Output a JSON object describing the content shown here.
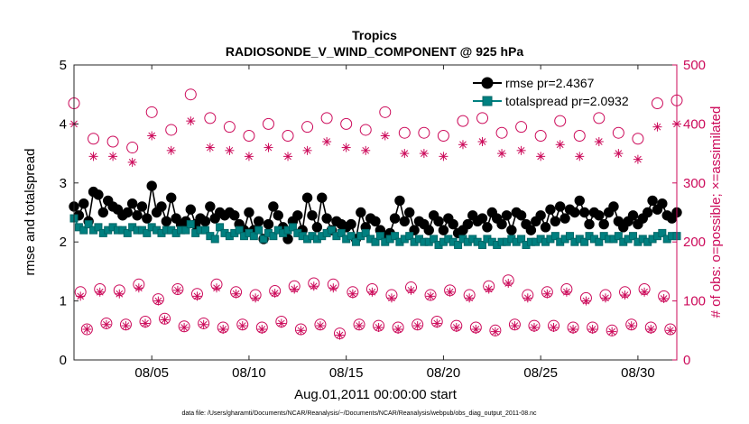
{
  "chart_data": {
    "type": "line",
    "title": "Tropics",
    "subtitle": "RADIOSONDE_V_WIND_COMPONENT @ 925 hPa",
    "xlabel": "Aug.01,2011 00:00:00 start",
    "ylabel_left": "rmse and totalspread",
    "ylabel_right": "# of obs: o=possible; ×=assimilated",
    "footer": "data file: /Users/gharamti/Documents/NCAR/Reanalysis/~/Documents/NCAR/Reanalysis/webpub/obs_diag_output_2011-08.nc",
    "x_start_day": 1,
    "x_range_days": [
      1,
      32
    ],
    "x_ticks": [
      {
        "day": 5,
        "label": "08/05"
      },
      {
        "day": 10,
        "label": "08/10"
      },
      {
        "day": 15,
        "label": "08/15"
      },
      {
        "day": 20,
        "label": "08/20"
      },
      {
        "day": 25,
        "label": "08/25"
      },
      {
        "day": 30,
        "label": "08/30"
      }
    ],
    "ylim_left": [
      0,
      5
    ],
    "yticks_left": [
      "0",
      "1",
      "2",
      "3",
      "4",
      "5"
    ],
    "ylim_right": [
      0,
      500
    ],
    "yticks_right": [
      "0",
      "100",
      "200",
      "300",
      "400",
      "500"
    ],
    "step_hours": 6,
    "series": [
      {
        "name": "rmse",
        "legend": "rmse pr=2.4367",
        "axis": "left",
        "color": "#000000",
        "marker": "circle",
        "values": [
          2.6,
          2.45,
          2.65,
          2.35,
          2.85,
          2.8,
          2.5,
          2.7,
          2.6,
          2.55,
          2.45,
          2.5,
          2.65,
          2.45,
          2.6,
          2.4,
          2.95,
          2.5,
          2.6,
          2.35,
          2.75,
          2.4,
          2.3,
          2.35,
          2.55,
          2.3,
          2.4,
          2.35,
          2.6,
          2.4,
          2.5,
          2.45,
          2.5,
          2.45,
          2.3,
          2.2,
          2.5,
          2.2,
          2.35,
          2.05,
          2.3,
          2.6,
          2.45,
          2.25,
          2.05,
          2.35,
          2.45,
          2.2,
          2.75,
          2.45,
          2.25,
          2.75,
          2.4,
          2.2,
          2.35,
          2.3,
          2.25,
          2.3,
          2.05,
          2.5,
          2.25,
          2.4,
          2.35,
          2.2,
          2.1,
          2.15,
          2.4,
          2.7,
          2.35,
          2.5,
          2.2,
          2.35,
          2.3,
          2.2,
          2.45,
          2.35,
          2.2,
          2.4,
          2.3,
          2.15,
          2.2,
          2.3,
          2.45,
          2.35,
          2.4,
          2.25,
          2.5,
          2.4,
          2.3,
          2.45,
          2.2,
          2.5,
          2.45,
          2.3,
          2.2,
          2.35,
          2.45,
          2.25,
          2.55,
          2.35,
          2.6,
          2.4,
          2.55,
          2.5,
          2.7,
          2.5,
          2.3,
          2.5,
          2.45,
          2.3,
          2.5,
          2.6,
          2.35,
          2.25,
          2.35,
          2.45,
          2.3,
          2.4,
          2.5,
          2.7,
          2.55,
          2.65,
          2.45,
          2.4,
          2.5,
          2.2,
          2.7,
          2.25,
          2.4,
          2.35,
          2.55,
          2.4,
          2.5,
          2.45,
          2.3,
          2.5,
          2.4,
          2.65,
          2.45,
          2.85,
          2.55,
          2.35,
          2.7,
          2.4,
          2.5,
          2.3,
          2.6,
          2.45,
          2.55,
          2.65,
          2.4,
          2.6,
          2.7,
          2.4,
          2.55,
          2.35,
          2.5,
          2.35,
          2.4,
          2.25,
          2.55,
          2.45,
          2.65,
          2.6,
          2.4,
          2.35,
          2.3,
          2.65,
          2.4,
          2.15,
          2.45,
          2.25,
          2.55,
          2.3,
          2.65,
          2.35,
          2.5,
          2.4,
          2.6,
          2.55,
          2.3,
          2.4,
          2.5,
          2.35,
          2.45,
          2.3,
          2.4,
          2.3,
          2.65,
          2.4,
          2.55,
          2.55,
          2.4,
          2.4,
          2.45,
          2.3,
          2.55,
          2.4,
          2.7,
          2.5,
          2.55,
          2.45,
          2.6,
          2.4,
          2.4,
          2.5,
          2.35,
          2.4,
          2.45,
          2.45,
          2.6,
          2.35,
          2.3,
          2.5,
          2.35,
          2.45,
          2.4,
          2.5,
          2.3,
          2.5,
          2.6,
          2.35,
          2.45,
          2.3,
          2.45,
          2.6,
          2.35,
          2.35,
          2.4,
          2.25,
          2.4,
          2.7,
          2.35,
          2.45,
          2.65,
          2.5,
          2.4,
          2.6,
          2.35,
          2.5,
          2.6,
          2.45,
          2.4,
          2.3,
          2.5,
          2.55,
          2.4,
          2.65,
          2.45,
          2.5,
          2.35,
          2.6,
          2.45,
          2.4,
          2.5,
          2.35,
          2.4,
          2.45,
          2.65,
          2.5,
          2.3,
          2.4,
          2.5,
          2.35,
          2.45,
          2.3,
          2.45,
          2.6,
          2.35,
          2.45,
          2.5,
          2.4,
          2.35,
          2.5,
          2.4,
          2.6,
          2.45,
          2.5,
          2.35,
          2.4,
          2.35,
          2.4,
          2.55,
          2.3,
          2.4,
          2.5,
          2.45,
          2.35,
          2.5,
          2.35,
          2.45,
          2.4,
          2.35,
          2.5,
          2.4,
          2.3,
          2.45,
          2.5,
          2.35,
          2.6,
          2.4,
          2.3,
          2.45,
          2.55,
          2.4,
          2.3,
          2.5,
          2.45,
          2.4,
          2.35,
          2.5,
          2.4,
          2.45,
          2.35,
          2.55,
          2.4,
          2.45,
          2.3,
          2.5,
          2.4,
          2.45,
          2.3,
          2.45,
          2.6,
          2.4,
          2.35,
          2.45,
          2.5,
          2.35,
          2.45,
          2.4,
          2.35,
          2.5,
          2.45,
          2.4,
          2.35,
          2.5,
          2.4,
          2.45,
          2.35,
          2.6,
          2.4,
          2.45,
          2.35,
          2.5,
          2.4,
          2.45,
          2.3,
          2.5,
          2.4,
          2.4,
          2.35
        ]
      },
      {
        "name": "totalspread",
        "legend": "totalspread pr=2.0932",
        "axis": "left",
        "color": "#008080",
        "marker": "square",
        "values": [
          2.4,
          2.25,
          2.2,
          2.3,
          2.2,
          2.25,
          2.15,
          2.2,
          2.25,
          2.2,
          2.2,
          2.15,
          2.25,
          2.2,
          2.2,
          2.15,
          2.25,
          2.2,
          2.15,
          2.2,
          2.2,
          2.15,
          2.2,
          2.2,
          2.3,
          2.15,
          2.2,
          2.2,
          2.1,
          2.05,
          2.25,
          2.15,
          2.1,
          2.15,
          2.2,
          2.1,
          2.15,
          2.1,
          2.2,
          2.05,
          2.15,
          2.1,
          2.2,
          2.15,
          2.2,
          2.25,
          2.15,
          2.1,
          2.05,
          2.1,
          2.05,
          2.1,
          2.15,
          2.2,
          2.1,
          2.15,
          2.05,
          2.1,
          2.0,
          2.1,
          2.15,
          2.05,
          2.0,
          2.1,
          2.0,
          2.05,
          2.1,
          2.0,
          2.05,
          2.1,
          2.0,
          2.05,
          2.0,
          2.0,
          2.05,
          1.95,
          2.0,
          2.05,
          2.0,
          1.95,
          2.05,
          2.0,
          2.05,
          2.0,
          1.95,
          2.05,
          2.0,
          1.95,
          2.0,
          2.0,
          2.05,
          2.0,
          2.05,
          1.95,
          2.0,
          2.0,
          2.05,
          2.0,
          2.05,
          2.1,
          2.0,
          2.05,
          2.1,
          2.0,
          2.05,
          2.0,
          2.1,
          2.05,
          2.0,
          2.1,
          2.05,
          2.05,
          2.1,
          2.0,
          2.05,
          2.1,
          2.0,
          2.05,
          2.0,
          2.05,
          2.1,
          2.15,
          2.05,
          2.1,
          2.1,
          2.05,
          2.15,
          2.1,
          2.05,
          2.1,
          2.15,
          2.05,
          2.1,
          2.05,
          2.1,
          2.05,
          2.15,
          2.1,
          2.05,
          2.1,
          2.15,
          2.1,
          2.1,
          2.2,
          2.05,
          2.1,
          2.15,
          2.1,
          2.2,
          2.15,
          2.1,
          2.2,
          2.15,
          2.2,
          2.1,
          2.15,
          2.2,
          2.1,
          2.15,
          2.2,
          2.15,
          2.1,
          2.2,
          2.15,
          2.2,
          2.1,
          2.2,
          2.25,
          2.15,
          2.2,
          2.15,
          2.25,
          2.15,
          2.2,
          2.25,
          2.15,
          2.3,
          2.2,
          2.25,
          2.3,
          2.2,
          2.25,
          2.15,
          2.3,
          2.2,
          2.25,
          2.35,
          2.2,
          2.25,
          2.3,
          2.2,
          2.25,
          2.3,
          2.25,
          2.2,
          2.3,
          2.25,
          2.3,
          2.2,
          2.25,
          2.3,
          2.2,
          2.25,
          2.3,
          2.25,
          2.2,
          2.3,
          2.25,
          2.3,
          2.35,
          2.25,
          2.3,
          2.25,
          2.3,
          2.25,
          2.2,
          2.3,
          2.25,
          2.3,
          2.2,
          2.25,
          2.3,
          2.25,
          2.2,
          2.3,
          2.25,
          2.3,
          2.2,
          2.25,
          2.3,
          2.2,
          2.25,
          2.3,
          2.25,
          2.2,
          2.25,
          2.3,
          2.2,
          2.25,
          2.3,
          2.25,
          2.2,
          2.3,
          2.25,
          2.2,
          2.3,
          2.25,
          2.3,
          2.2,
          2.25,
          2.2,
          2.3,
          2.25,
          2.2,
          2.3,
          2.25,
          2.2,
          2.25,
          2.3,
          2.2,
          2.25,
          2.2,
          2.3,
          2.25,
          2.2,
          2.25,
          2.3,
          2.2,
          2.25,
          2.2,
          2.25,
          2.3,
          2.2,
          2.25,
          2.2,
          2.3,
          2.25,
          2.2,
          2.25,
          2.2,
          2.3,
          2.25,
          2.2,
          2.25,
          2.3,
          2.2,
          2.25,
          2.2,
          2.25,
          2.3,
          2.2,
          2.25,
          2.2,
          2.3,
          2.25,
          2.2,
          2.25,
          2.2,
          2.3,
          2.25,
          2.2,
          2.25,
          2.3,
          2.2,
          2.25,
          2.2,
          2.3,
          2.25,
          2.2,
          2.25,
          2.2,
          2.3,
          2.25,
          2.2,
          2.25,
          2.2,
          2.3,
          2.25,
          2.2,
          2.25,
          2.3,
          2.2,
          2.25,
          2.2,
          2.3,
          2.25,
          2.2,
          2.25,
          2.2,
          2.3,
          2.25,
          2.2,
          2.25,
          2.3,
          2.2,
          2.25,
          2.2,
          2.3,
          2.25,
          2.2,
          2.25,
          2.3,
          2.2,
          2.25,
          2.2,
          2.05
        ]
      },
      {
        "name": "possible",
        "legend": "# of obs possible",
        "axis": "right",
        "color": "#cc0a5a",
        "marker": "open-circle",
        "values": [
          435,
          115,
          52,
          375,
          120,
          62,
          370,
          118,
          60,
          360,
          128,
          65,
          420,
          103,
          70,
          390,
          120,
          57,
          450,
          112,
          62,
          410,
          128,
          55,
          395,
          115,
          60,
          380,
          110,
          55,
          400,
          117,
          65,
          380,
          125,
          52,
          395,
          130,
          60,
          410,
          128,
          45,
          400,
          115,
          60,
          390,
          120,
          58,
          420,
          110,
          55,
          385,
          123,
          60,
          385,
          110,
          65,
          380,
          118,
          58,
          405,
          110,
          55,
          410,
          125,
          50,
          385,
          135,
          60,
          395,
          110,
          58,
          380,
          115,
          58,
          405,
          120,
          55,
          380,
          105,
          55,
          410,
          110,
          50,
          385,
          115,
          60,
          375,
          120,
          55,
          435,
          108,
          52,
          440,
          110,
          55,
          395,
          110,
          58,
          390,
          125,
          68,
          420,
          112,
          55,
          395,
          120,
          58,
          405,
          110,
          60,
          375,
          128,
          50,
          430,
          120,
          58,
          400,
          135,
          55,
          420,
          105,
          48,
          395,
          110,
          55,
          385,
          118,
          52,
          385,
          115,
          55,
          395,
          120,
          48,
          395,
          110,
          50,
          390,
          115,
          55,
          395,
          112,
          50,
          400,
          105,
          50,
          395,
          118,
          45,
          405,
          110,
          55,
          395,
          120,
          50,
          385,
          115,
          45,
          400,
          108,
          50,
          400,
          115,
          48,
          390,
          110,
          50,
          405,
          118,
          48,
          395,
          112,
          45
        ]
      },
      {
        "name": "assimilated",
        "legend": "# of obs assimilated",
        "axis": "right",
        "color": "#cc0a5a",
        "marker": "asterisk",
        "values": [
          400,
          108,
          52,
          345,
          115,
          60,
          345,
          112,
          58,
          335,
          122,
          62,
          380,
          100,
          68,
          355,
          118,
          55,
          405,
          108,
          60,
          360,
          122,
          52,
          355,
          112,
          58,
          345,
          105,
          52,
          360,
          113,
          62,
          345,
          120,
          50,
          355,
          125,
          58,
          370,
          122,
          42,
          360,
          112,
          58,
          355,
          115,
          55,
          380,
          105,
          52,
          350,
          118,
          58,
          350,
          108,
          62,
          345,
          115,
          55,
          365,
          105,
          52,
          370,
          120,
          48,
          350,
          130,
          58,
          355,
          105,
          55,
          345,
          112,
          55,
          365,
          115,
          52,
          345,
          100,
          52,
          370,
          105,
          48,
          350,
          110,
          58,
          340,
          115,
          52,
          395,
          104,
          50,
          400,
          108,
          52,
          355,
          105,
          55,
          350,
          120,
          65,
          380,
          108,
          52,
          355,
          115,
          55,
          365,
          106,
          58,
          340,
          122,
          48,
          390,
          115,
          55,
          360,
          130,
          52,
          380,
          100,
          46,
          355,
          106,
          52,
          345,
          112,
          50,
          345,
          110,
          52,
          355,
          115,
          46,
          355,
          105,
          48,
          350,
          110,
          52,
          355,
          108,
          48,
          360,
          100,
          48,
          355,
          112,
          42,
          365,
          106,
          52,
          355,
          115,
          48,
          345,
          110,
          42,
          360,
          104,
          48,
          360,
          110,
          45,
          350,
          105,
          48,
          365,
          112,
          45,
          355,
          108,
          42
        ]
      }
    ]
  }
}
